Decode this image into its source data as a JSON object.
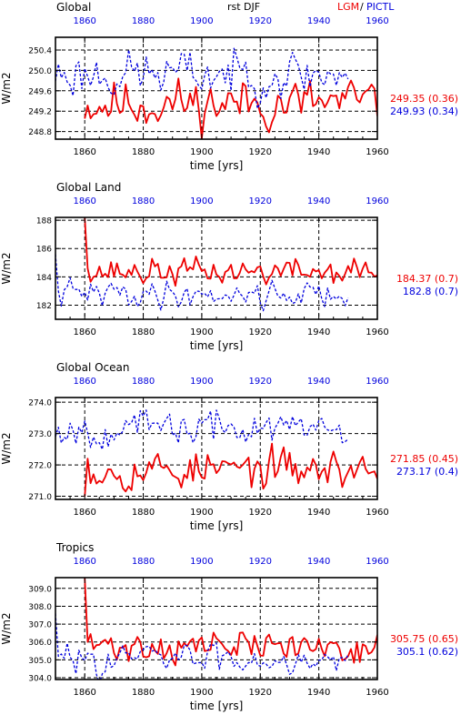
{
  "header": {
    "title": "rst DJF",
    "legend_lgm": "LGM",
    "legend_sep": "/",
    "legend_pictl": "PICTL"
  },
  "colors": {
    "lgm": "#ee0000",
    "pictl": "#0000dd",
    "axis": "#000000"
  },
  "chart_data": [
    {
      "type": "line",
      "title": "Global",
      "xlabel": "time [yrs]",
      "ylabel": "W/m2",
      "xlim": [
        1850,
        1960
      ],
      "ylim": [
        248.65,
        250.65
      ],
      "xticks": [
        1860,
        1880,
        1900,
        1920,
        1940,
        1960
      ],
      "yticks": [
        248.8,
        249.2,
        249.6,
        250.0,
        250.4
      ],
      "ytick_labels": [
        "248.8",
        "249.2",
        "249.6",
        "250.0",
        "250.4"
      ],
      "grid": true,
      "series": [
        {
          "name": "LGM",
          "summary": "249.35 (0.36)",
          "x_start": 1860,
          "x_end": 1960,
          "mean": 249.35,
          "sd": 0.36,
          "spin": null,
          "seed": 11
        },
        {
          "name": "PICTL",
          "summary": "249.93 (0.34)",
          "x_start": 1850,
          "x_end": 1950,
          "mean": 249.93,
          "sd": 0.34,
          "spin": null,
          "seed": 23
        }
      ]
    },
    {
      "type": "line",
      "title": "Global Land",
      "xlabel": "time [yrs]",
      "ylabel": "W/m2",
      "xlim": [
        1850,
        1960
      ],
      "ylim": [
        181.0,
        188.2
      ],
      "xticks": [
        1860,
        1880,
        1900,
        1920,
        1940,
        1960
      ],
      "yticks": [
        182,
        184,
        186,
        188
      ],
      "ytick_labels": [
        "182",
        "184",
        "186",
        "188"
      ],
      "grid": true,
      "series": [
        {
          "name": "LGM",
          "summary": "184.37 (0.7)",
          "x_start": 1860,
          "x_end": 1960,
          "mean": 184.37,
          "sd": 0.7,
          "spin": [
            188.2,
            184.6
          ],
          "seed": 37
        },
        {
          "name": "PICTL",
          "summary": "182.8 (0.7)",
          "x_start": 1850,
          "x_end": 1950,
          "mean": 182.8,
          "sd": 0.7,
          "spin": [
            185.6,
            183.0
          ],
          "seed": 41
        }
      ]
    },
    {
      "type": "line",
      "title": "Global Ocean",
      "xlabel": "time [yrs]",
      "ylabel": "W/m2",
      "xlim": [
        1850,
        1960
      ],
      "ylim": [
        270.9,
        274.15
      ],
      "xticks": [
        1860,
        1880,
        1900,
        1920,
        1940,
        1960
      ],
      "yticks": [
        271.0,
        272.0,
        273.0,
        274.0
      ],
      "ytick_labels": [
        "271.0",
        "272.0",
        "273.0",
        "274.0"
      ],
      "grid": true,
      "series": [
        {
          "name": "LGM",
          "summary": "271.85 (0.45)",
          "x_start": 1860,
          "x_end": 1960,
          "mean": 271.85,
          "sd": 0.45,
          "spin": [
            271.0,
            272.2
          ],
          "seed": 53
        },
        {
          "name": "PICTL",
          "summary": "273.17 (0.4)",
          "x_start": 1850,
          "x_end": 1950,
          "mean": 273.17,
          "sd": 0.4,
          "spin": [
            272.9,
            273.2
          ],
          "seed": 67
        }
      ]
    },
    {
      "type": "line",
      "title": "Tropics",
      "xlabel": "time [yrs]",
      "ylabel": "W/m2",
      "xlim": [
        1850,
        1960
      ],
      "ylim": [
        303.9,
        309.6
      ],
      "xticks": [
        1860,
        1880,
        1900,
        1920,
        1940,
        1960
      ],
      "yticks": [
        304.0,
        305.0,
        306.0,
        307.0,
        308.0,
        309.0
      ],
      "ytick_labels": [
        "304.0",
        "305.0",
        "306.0",
        "307.0",
        "308.0",
        "309.0"
      ],
      "grid": true,
      "series": [
        {
          "name": "LGM",
          "summary": "305.75 (0.65)",
          "x_start": 1860,
          "x_end": 1960,
          "mean": 305.75,
          "sd": 0.65,
          "spin": [
            309.6,
            306.0
          ],
          "seed": 71
        },
        {
          "name": "PICTL",
          "summary": "305.1 (0.62)",
          "x_start": 1850,
          "x_end": 1950,
          "mean": 305.1,
          "sd": 0.62,
          "spin": [
            307.6,
            305.2
          ],
          "seed": 83
        }
      ]
    }
  ]
}
